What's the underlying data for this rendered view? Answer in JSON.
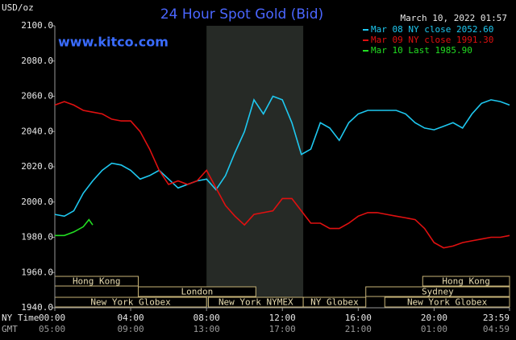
{
  "chart_data": {
    "type": "line",
    "title": "24 Hour Spot Gold (Bid)",
    "y_label": "USD/oz",
    "timestamp": "March 10, 2022 01:57",
    "watermark": "www.kitco.com",
    "xlim": [
      0,
      23.98
    ],
    "ylim": [
      1940,
      2100
    ],
    "yticks": [
      {
        "value": 1940,
        "label": "1940.0"
      },
      {
        "value": 1960,
        "label": "1960.0"
      },
      {
        "value": 1980,
        "label": "1980.0"
      },
      {
        "value": 2000,
        "label": "2000.0"
      },
      {
        "value": 2020,
        "label": "2020.0"
      },
      {
        "value": 2040,
        "label": "2040.0"
      },
      {
        "value": 2060,
        "label": "2060.0"
      },
      {
        "value": 2080,
        "label": "2080.0"
      },
      {
        "value": 2100,
        "label": "2100.0"
      }
    ],
    "xticks": [
      {
        "value": 0,
        "label": "00:00"
      },
      {
        "value": 4,
        "label": "04:00"
      },
      {
        "value": 8,
        "label": "08:00"
      },
      {
        "value": 12,
        "label": "12:00"
      },
      {
        "value": 16,
        "label": "16:00"
      },
      {
        "value": 20,
        "label": "20:00"
      },
      {
        "value": 23.98,
        "label": "23:59"
      }
    ],
    "x_row_labels": [
      "NY Time",
      "GMT"
    ],
    "gmt_labels": [
      "05:00",
      "09:00",
      "13:00",
      "17:00",
      "21:00",
      "01:00",
      "04:59"
    ],
    "shaded_region": [
      8,
      13.1
    ],
    "session_rows": [
      [
        {
          "label": "Hong Kong",
          "start": 0,
          "end": 4.4
        },
        {
          "label": "Hong Kong",
          "start": 19.4,
          "end": 23.98
        }
      ],
      [
        {
          "label": "London",
          "start": 4.4,
          "end": 10.6
        },
        {
          "label": "Sydney",
          "start": 16.4,
          "end": 23.98
        }
      ],
      [
        {
          "label": "New York Globex",
          "start": 0,
          "end": 8
        },
        {
          "label": "New York NYMEX",
          "start": 8.1,
          "end": 13.1
        },
        {
          "label": "NY Globex",
          "start": 13.1,
          "end": 16.4
        },
        {
          "label": "New York Globex",
          "start": 17.4,
          "end": 23.98
        }
      ]
    ],
    "series": [
      {
        "name": "Mar 08 NY close 2052.60",
        "color": "#1ec8f0",
        "x": [
          0,
          0.5,
          1,
          1.5,
          2,
          2.5,
          3,
          3.5,
          4,
          4.5,
          5,
          5.5,
          6,
          6.5,
          7,
          7.5,
          8,
          8.5,
          9,
          9.5,
          10,
          10.5,
          11,
          11.5,
          12,
          12.5,
          13,
          13.5,
          14,
          14.5,
          15,
          15.5,
          16,
          16.5,
          17,
          17.5,
          18,
          18.5,
          19,
          19.5,
          20,
          20.5,
          21,
          21.5,
          22,
          22.5,
          23,
          23.5,
          23.98
        ],
        "values": [
          1993,
          1992,
          1995,
          2005,
          2012,
          2018,
          2022,
          2021,
          2018,
          2013,
          2015,
          2018,
          2013,
          2008,
          2010,
          2012,
          2013,
          2007,
          2015,
          2028,
          2040,
          2058,
          2050,
          2060,
          2058,
          2045,
          2027,
          2030,
          2045,
          2042,
          2035,
          2045,
          2050,
          2052,
          2052,
          2052,
          2052,
          2050,
          2045,
          2042,
          2041,
          2043,
          2045,
          2042,
          2050,
          2056,
          2058,
          2057,
          2055
        ]
      },
      {
        "name": "Mar 09 NY close 1991.30",
        "color": "#e01010",
        "x": [
          0,
          0.5,
          1,
          1.5,
          2,
          2.5,
          3,
          3.5,
          4,
          4.5,
          5,
          5.5,
          6,
          6.5,
          7,
          7.5,
          8,
          8.5,
          9,
          9.5,
          10,
          10.5,
          11,
          11.5,
          12,
          12.5,
          13,
          13.5,
          14,
          14.5,
          15,
          15.5,
          16,
          16.5,
          17,
          17.5,
          18,
          18.5,
          19,
          19.5,
          20,
          20.5,
          21,
          21.5,
          22,
          22.5,
          23,
          23.5,
          23.98
        ],
        "values": [
          2055,
          2057,
          2055,
          2052,
          2051,
          2050,
          2047,
          2046,
          2046,
          2040,
          2030,
          2018,
          2010,
          2012,
          2010,
          2012,
          2018,
          2008,
          1998,
          1992,
          1987,
          1993,
          1994,
          1995,
          2002,
          2002,
          1995,
          1988,
          1988,
          1985,
          1985,
          1988,
          1992,
          1994,
          1994,
          1993,
          1992,
          1991,
          1990,
          1985,
          1977,
          1974,
          1975,
          1977,
          1978,
          1979,
          1980,
          1980,
          1981
        ]
      },
      {
        "name": "Mar 10 Last 1985.90",
        "color": "#22dd22",
        "x": [
          0,
          0.5,
          1,
          1.5,
          1.8,
          2
        ],
        "values": [
          1981,
          1981,
          1983,
          1986,
          1990,
          1987
        ]
      }
    ]
  }
}
